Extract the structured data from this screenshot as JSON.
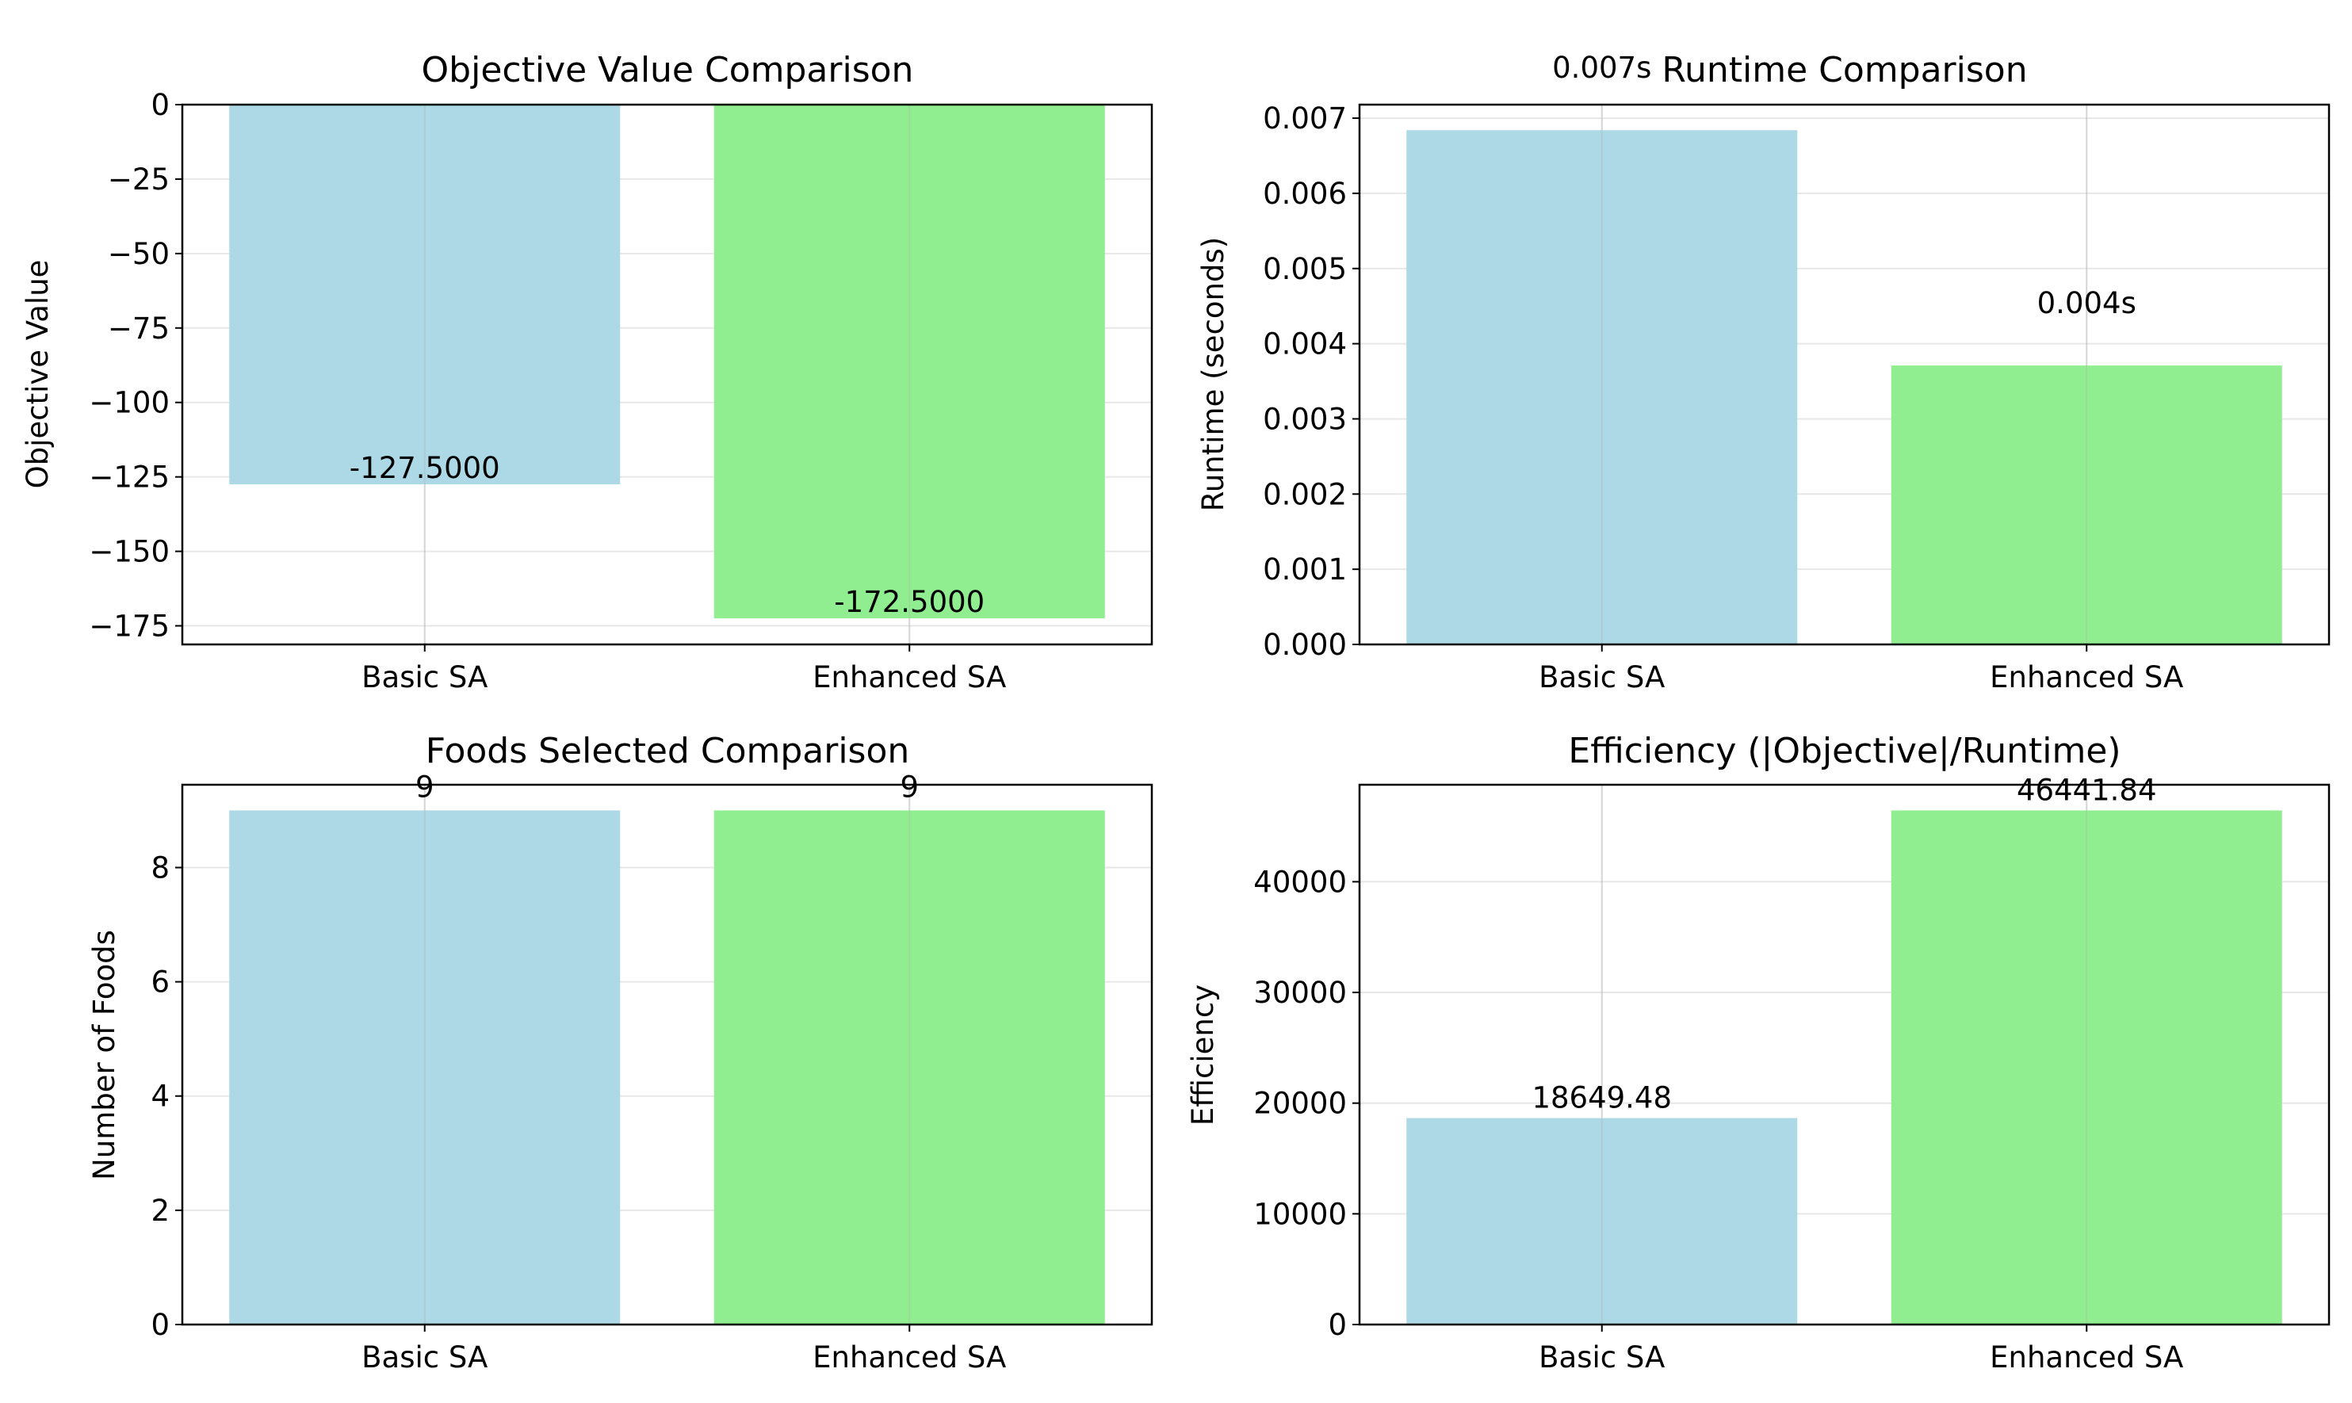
{
  "chart_data": [
    {
      "type": "bar",
      "title": "Objective Value Comparison",
      "xlabel": "",
      "ylabel": "Objective Value",
      "categories": [
        "Basic SA",
        "Enhanced SA"
      ],
      "values": [
        -127.5,
        -172.5
      ],
      "data_labels": [
        "-127.5000",
        "-172.5000"
      ],
      "colors": [
        "#add8e6",
        "#90ee90"
      ],
      "ylim": [
        -181.25,
        0
      ],
      "yticks": [
        0,
        -25,
        -50,
        -75,
        -100,
        -125,
        -150,
        -175
      ],
      "ytick_labels": [
        "0",
        "−25",
        "−50",
        "−75",
        "−100",
        "−125",
        "−150",
        "−175"
      ],
      "grid": true
    },
    {
      "type": "bar",
      "title": "Runtime Comparison",
      "xlabel": "",
      "ylabel": "Runtime (seconds)",
      "categories": [
        "Basic SA",
        "Enhanced SA"
      ],
      "values": [
        0.00684,
        0.00371
      ],
      "data_labels": [
        "0.007s",
        "0.004s"
      ],
      "colors": [
        "#add8e6",
        "#90ee90"
      ],
      "ylim": [
        0,
        0.00718
      ],
      "yticks": [
        0,
        0.001,
        0.002,
        0.003,
        0.004,
        0.005,
        0.006,
        0.007
      ],
      "ytick_labels": [
        "0.000",
        "0.001",
        "0.002",
        "0.003",
        "0.004",
        "0.005",
        "0.006",
        "0.007"
      ],
      "grid": true
    },
    {
      "type": "bar",
      "title": "Foods Selected Comparison",
      "xlabel": "",
      "ylabel": "Number of Foods",
      "categories": [
        "Basic SA",
        "Enhanced SA"
      ],
      "values": [
        9,
        9
      ],
      "data_labels": [
        "9",
        "9"
      ],
      "colors": [
        "#add8e6",
        "#90ee90"
      ],
      "ylim": [
        0,
        9.45
      ],
      "yticks": [
        0,
        2,
        4,
        6,
        8
      ],
      "ytick_labels": [
        "0",
        "2",
        "4",
        "6",
        "8"
      ],
      "grid": true
    },
    {
      "type": "bar",
      "title": "Efficiency (|Objective|/Runtime)",
      "xlabel": "",
      "ylabel": "Efficiency",
      "categories": [
        "Basic SA",
        "Enhanced SA"
      ],
      "values": [
        18649.48,
        46441.84
      ],
      "data_labels": [
        "18649.48",
        "46441.84"
      ],
      "colors": [
        "#add8e6",
        "#90ee90"
      ],
      "ylim": [
        0,
        48763.93
      ],
      "yticks": [
        0,
        10000,
        20000,
        30000,
        40000
      ],
      "ytick_labels": [
        "0",
        "10000",
        "20000",
        "30000",
        "40000"
      ],
      "grid": true
    }
  ]
}
